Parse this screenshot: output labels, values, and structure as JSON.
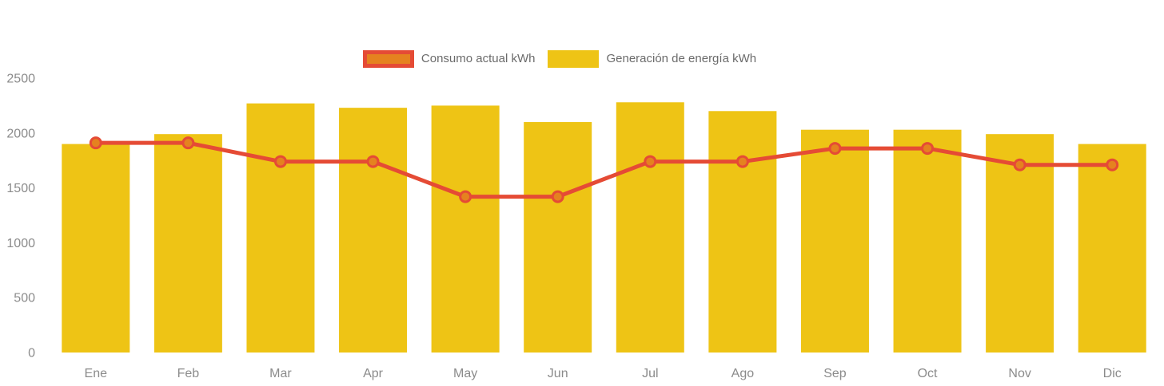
{
  "legend": {
    "items": [
      {
        "label": "Consumo actual kWh",
        "swatch": "line-series-swatch"
      },
      {
        "label": "Generación de energía kWh",
        "swatch": "bar-series-swatch"
      }
    ]
  },
  "chart_data": {
    "type": "combo-bar-line",
    "categories": [
      "Ene",
      "Feb",
      "Mar",
      "Apr",
      "May",
      "Jun",
      "Jul",
      "Ago",
      "Sep",
      "Oct",
      "Nov",
      "Dic"
    ],
    "series": [
      {
        "name": "Generación de energía kWh",
        "type": "bar",
        "color": "#EEC415",
        "values": [
          1900,
          1990,
          2270,
          2230,
          2250,
          2100,
          2280,
          2200,
          2030,
          2030,
          1990,
          1900
        ]
      },
      {
        "name": "Consumo actual kWh",
        "type": "line",
        "color": "#E54B35",
        "marker_color": "#E5821F",
        "values": [
          1910,
          1910,
          1740,
          1740,
          1420,
          1420,
          1740,
          1740,
          1860,
          1860,
          1710,
          1710
        ]
      }
    ],
    "title": "",
    "xlabel": "",
    "ylabel": "",
    "ylim": [
      0,
      2500
    ],
    "yticks": [
      0,
      500,
      1000,
      1500,
      2000,
      2500
    ],
    "grid": false,
    "legend_position": "top-center",
    "axis_text_color": "#8B8B8B"
  }
}
